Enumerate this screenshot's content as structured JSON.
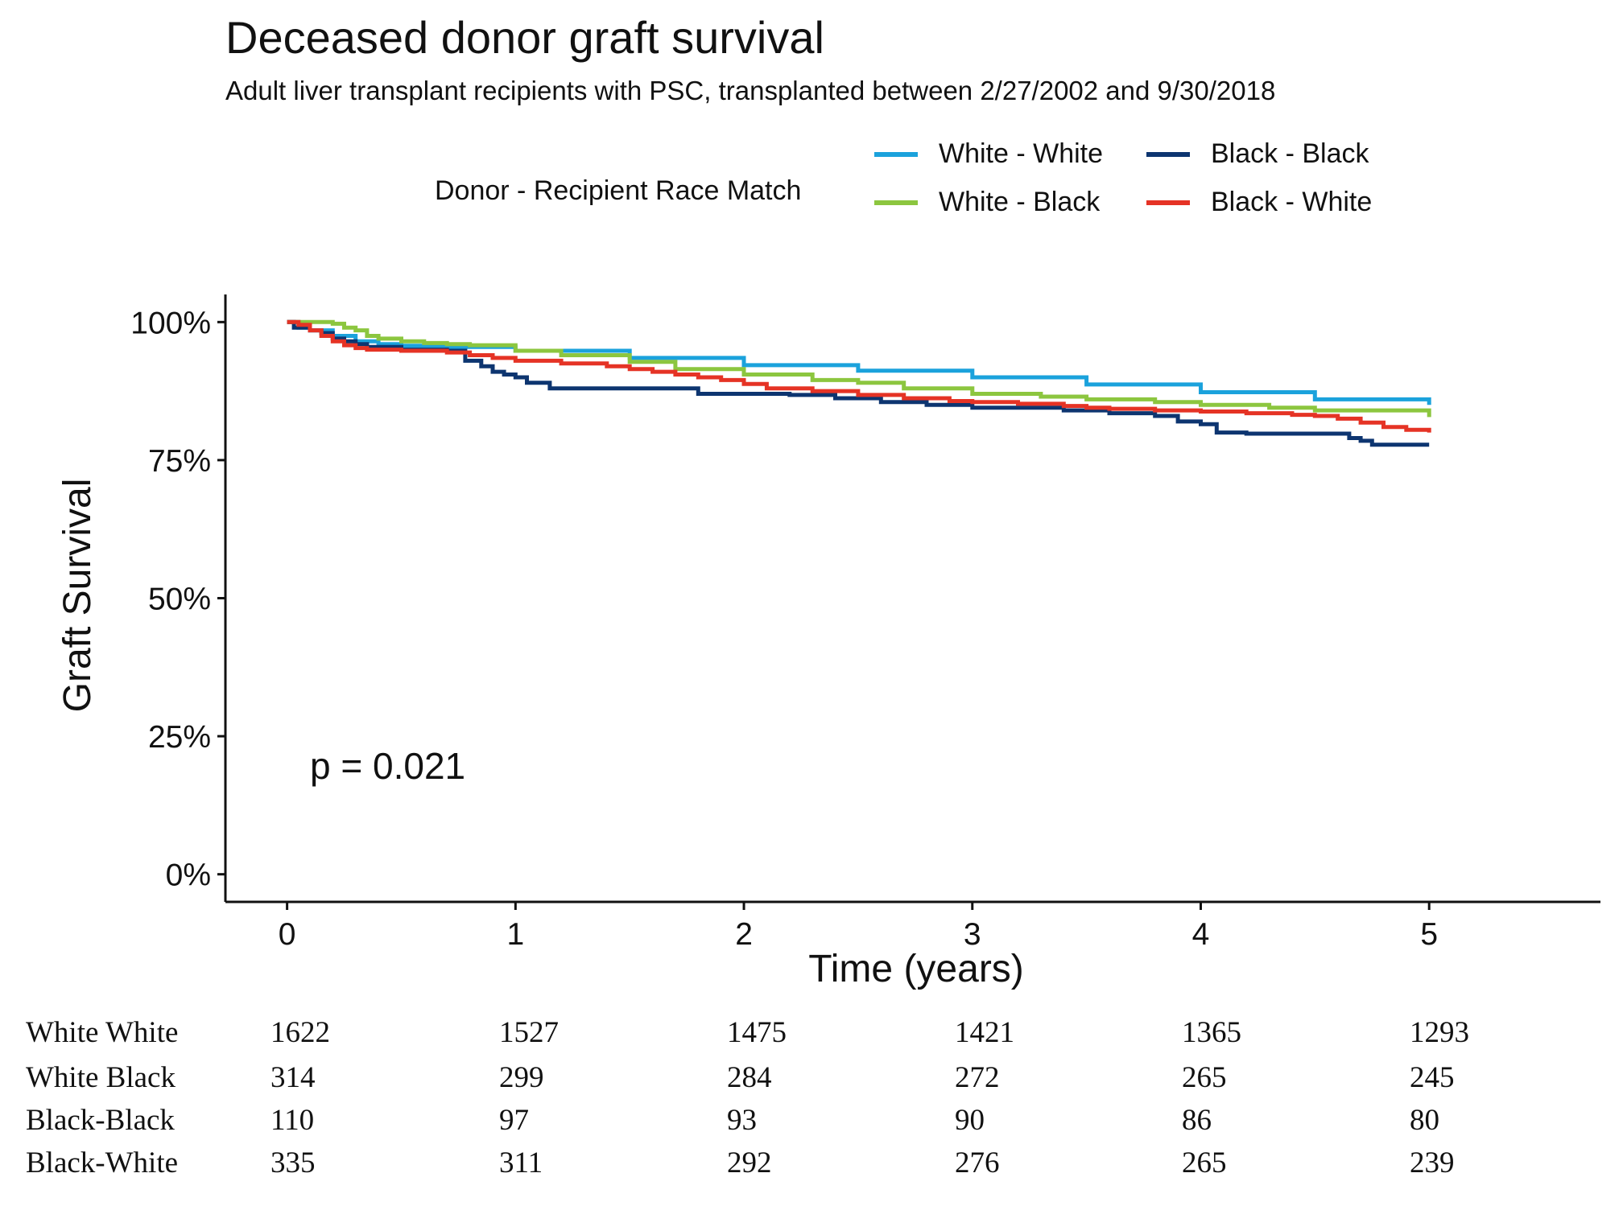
{
  "chart_data": {
    "type": "line",
    "title": "Deceased donor graft survival",
    "subtitle": "Adult liver transplant recipients with PSC, transplanted between 2/27/2002 and 9/30/2018",
    "xlabel": "Time (years)",
    "ylabel": "Graft Survival",
    "xlim": [
      -0.27,
      5.75
    ],
    "ylim": [
      -0.05,
      1.05
    ],
    "x_ticks": [
      0,
      1,
      2,
      3,
      4,
      5
    ],
    "x_tick_labels": [
      "0",
      "1",
      "2",
      "3",
      "4",
      "5"
    ],
    "y_ticks": [
      0,
      0.25,
      0.5,
      0.75,
      1.0
    ],
    "y_tick_labels": [
      "0%",
      "25%",
      "50%",
      "75%",
      "100%"
    ],
    "legend_title": "Donor - Recipient Race Match",
    "legend_position": "top",
    "annotation": "p = 0.021",
    "series": [
      {
        "name": "White - White",
        "color": "#1ba2dc",
        "x": [
          0,
          0.05,
          0.1,
          0.2,
          0.3,
          0.4,
          0.5,
          0.7,
          1.0,
          1.5,
          2.0,
          2.5,
          3.0,
          3.5,
          4.0,
          4.5,
          5.0
        ],
        "y": [
          1.0,
          0.99,
          0.985,
          0.975,
          0.965,
          0.96,
          0.957,
          0.955,
          0.948,
          0.935,
          0.922,
          0.912,
          0.9,
          0.887,
          0.873,
          0.86,
          0.85
        ]
      },
      {
        "name": "White - Black",
        "color": "#8cc63f",
        "x": [
          0,
          0.1,
          0.2,
          0.25,
          0.3,
          0.35,
          0.4,
          0.5,
          0.6,
          0.7,
          0.8,
          1.0,
          1.2,
          1.5,
          1.7,
          2.0,
          2.3,
          2.5,
          2.7,
          3.0,
          3.3,
          3.5,
          3.8,
          4.0,
          4.3,
          4.5,
          5.0
        ],
        "y": [
          1.0,
          1.0,
          0.997,
          0.99,
          0.985,
          0.975,
          0.97,
          0.965,
          0.962,
          0.96,
          0.958,
          0.948,
          0.94,
          0.928,
          0.915,
          0.905,
          0.895,
          0.89,
          0.88,
          0.87,
          0.865,
          0.86,
          0.855,
          0.85,
          0.845,
          0.84,
          0.828
        ]
      },
      {
        "name": "Black - Black",
        "color": "#0d3570",
        "x": [
          0,
          0.03,
          0.1,
          0.15,
          0.2,
          0.25,
          0.3,
          0.35,
          0.5,
          0.7,
          0.78,
          0.85,
          0.9,
          0.95,
          1.0,
          1.05,
          1.15,
          1.3,
          1.5,
          1.8,
          1.9,
          2.2,
          2.4,
          2.6,
          2.8,
          3.0,
          3.2,
          3.4,
          3.6,
          3.8,
          3.9,
          4.0,
          4.07,
          4.2,
          4.4,
          4.6,
          4.65,
          4.7,
          4.75,
          5.0
        ],
        "y": [
          1.0,
          0.99,
          0.985,
          0.98,
          0.97,
          0.965,
          0.96,
          0.955,
          0.95,
          0.948,
          0.93,
          0.92,
          0.91,
          0.905,
          0.9,
          0.89,
          0.88,
          0.88,
          0.88,
          0.87,
          0.87,
          0.868,
          0.862,
          0.855,
          0.85,
          0.845,
          0.845,
          0.84,
          0.835,
          0.83,
          0.82,
          0.815,
          0.8,
          0.798,
          0.798,
          0.798,
          0.79,
          0.785,
          0.778,
          0.778
        ]
      },
      {
        "name": "Black - White",
        "color": "#e53325",
        "x": [
          0,
          0.05,
          0.1,
          0.15,
          0.2,
          0.25,
          0.3,
          0.35,
          0.5,
          0.7,
          0.8,
          0.9,
          1.0,
          1.2,
          1.4,
          1.5,
          1.6,
          1.7,
          1.8,
          1.9,
          2.0,
          2.1,
          2.3,
          2.5,
          2.7,
          2.9,
          3.0,
          3.2,
          3.4,
          3.5,
          3.6,
          3.8,
          4.0,
          4.2,
          4.4,
          4.5,
          4.6,
          4.7,
          4.8,
          4.9,
          5.0
        ],
        "y": [
          1.0,
          0.995,
          0.985,
          0.975,
          0.965,
          0.958,
          0.953,
          0.95,
          0.948,
          0.945,
          0.94,
          0.935,
          0.93,
          0.925,
          0.92,
          0.915,
          0.91,
          0.905,
          0.9,
          0.895,
          0.888,
          0.88,
          0.875,
          0.868,
          0.862,
          0.857,
          0.855,
          0.852,
          0.848,
          0.845,
          0.843,
          0.84,
          0.838,
          0.835,
          0.832,
          0.83,
          0.825,
          0.818,
          0.81,
          0.805,
          0.8
        ]
      }
    ]
  },
  "risk_table": {
    "times": [
      0,
      1,
      2,
      3,
      4,
      5
    ],
    "rows": [
      {
        "label": "White White",
        "counts": [
          "1622",
          "1527",
          "1475",
          "1421",
          "1365",
          "1293"
        ]
      },
      {
        "label": "White Black",
        "counts": [
          "314",
          "299",
          "284",
          "272",
          "265",
          "245"
        ]
      },
      {
        "label": "Black-Black",
        "counts": [
          "110",
          "97",
          "93",
          "90",
          "86",
          "80"
        ]
      },
      {
        "label": "Black-White",
        "counts": [
          "335",
          "311",
          "292",
          "276",
          "265",
          "239"
        ]
      }
    ]
  }
}
